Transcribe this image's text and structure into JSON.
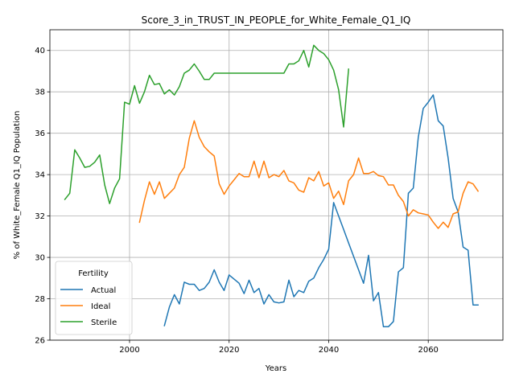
{
  "chart_data": {
    "type": "line",
    "title": "Score_3_in_TRUST_IN_PEOPLE_for_White_Female_Q1_IQ",
    "xlabel": "Years",
    "ylabel": "% of White_Female Q1_IQ Population",
    "xlim": [
      1984,
      2075
    ],
    "ylim": [
      26,
      41
    ],
    "xticks": [
      2000,
      2020,
      2040,
      2060
    ],
    "yticks": [
      26,
      28,
      30,
      32,
      34,
      36,
      38,
      40
    ],
    "grid": true,
    "legend": {
      "title": "Fertility",
      "position": "lower-left"
    },
    "series": [
      {
        "name": "Actual",
        "color": "#1f77b4",
        "x": [
          2007,
          2008,
          2009,
          2010,
          2011,
          2012,
          2013,
          2014,
          2015,
          2016,
          2017,
          2018,
          2019,
          2020,
          2021,
          2022,
          2023,
          2024,
          2025,
          2026,
          2027,
          2028,
          2029,
          2030,
          2031,
          2032,
          2033,
          2034,
          2035,
          2036,
          2037,
          2038,
          2039,
          2040,
          2041,
          2042,
          2043,
          2044,
          2045,
          2046,
          2047,
          2048,
          2049,
          2050,
          2051,
          2052,
          2053,
          2054,
          2055,
          2056,
          2057,
          2058,
          2059,
          2060,
          2061,
          2062,
          2063,
          2064,
          2065,
          2066,
          2067,
          2068,
          2069,
          2070
        ],
        "y": [
          26.7,
          27.6,
          28.2,
          27.75,
          28.8,
          28.7,
          28.7,
          28.4,
          28.5,
          28.8,
          29.4,
          28.8,
          28.4,
          29.15,
          28.95,
          28.75,
          28.25,
          28.9,
          28.3,
          28.5,
          27.75,
          28.2,
          27.85,
          27.8,
          27.85,
          28.9,
          28.1,
          28.4,
          28.3,
          28.85,
          29.0,
          29.5,
          29.9,
          30.4,
          32.65,
          32.0,
          31.35,
          30.7,
          30.05,
          29.4,
          28.75,
          30.1,
          27.9,
          28.3,
          26.65,
          26.65,
          26.9,
          29.3,
          29.5,
          33.1,
          33.35,
          35.8,
          37.2,
          37.5,
          37.85,
          36.6,
          36.35,
          34.8,
          32.85,
          32.2,
          30.5,
          30.35,
          27.7,
          27.7
        ]
      },
      {
        "name": "Ideal",
        "color": "#ff7f0e",
        "x": [
          2002,
          2003,
          2004,
          2005,
          2006,
          2007,
          2008,
          2009,
          2010,
          2011,
          2012,
          2013,
          2014,
          2015,
          2016,
          2017,
          2018,
          2019,
          2020,
          2021,
          2022,
          2023,
          2024,
          2025,
          2026,
          2027,
          2028,
          2029,
          2030,
          2031,
          2032,
          2033,
          2034,
          2035,
          2036,
          2037,
          2038,
          2039,
          2040,
          2041,
          2042,
          2043,
          2044,
          2045,
          2046,
          2047,
          2048,
          2049,
          2050,
          2051,
          2052,
          2053,
          2054,
          2055,
          2056,
          2057,
          2058,
          2059,
          2060,
          2061,
          2062,
          2063,
          2064,
          2065,
          2066,
          2067,
          2068,
          2069,
          2070
        ],
        "y": [
          31.7,
          32.75,
          33.65,
          33.05,
          33.65,
          32.85,
          33.1,
          33.35,
          34.0,
          34.35,
          35.75,
          36.6,
          35.8,
          35.35,
          35.1,
          34.9,
          33.55,
          33.05,
          33.45,
          33.75,
          34.05,
          33.9,
          33.9,
          34.65,
          33.85,
          34.65,
          33.85,
          34.0,
          33.9,
          34.2,
          33.7,
          33.6,
          33.25,
          33.15,
          33.85,
          33.7,
          34.15,
          33.45,
          33.6,
          32.85,
          33.2,
          32.55,
          33.7,
          34.0,
          34.8,
          34.05,
          34.05,
          34.15,
          33.95,
          33.9,
          33.5,
          33.5,
          33.0,
          32.7,
          32.0,
          32.3,
          32.15,
          32.1,
          32.05,
          31.7,
          31.4,
          31.7,
          31.45,
          32.1,
          32.2,
          33.1,
          33.65,
          33.55,
          33.2
        ]
      },
      {
        "name": "Sterile",
        "color": "#2ca02c",
        "x": [
          1987,
          1988,
          1989,
          1990,
          1991,
          1992,
          1993,
          1994,
          1995,
          1996,
          1997,
          1998,
          1999,
          2000,
          2001,
          2002,
          2003,
          2004,
          2005,
          2006,
          2007,
          2008,
          2009,
          2010,
          2011,
          2012,
          2013,
          2014,
          2015,
          2016,
          2017,
          2018,
          2019,
          2020,
          2021,
          2022,
          2023,
          2024,
          2025,
          2026,
          2027,
          2028,
          2029,
          2030,
          2031,
          2032,
          2033,
          2034,
          2035,
          2036,
          2037,
          2038,
          2039,
          2040,
          2041,
          2042,
          2043,
          2044
        ],
        "y": [
          32.8,
          33.1,
          35.2,
          34.8,
          34.35,
          34.4,
          34.6,
          34.95,
          33.5,
          32.6,
          33.35,
          33.8,
          37.5,
          37.4,
          38.3,
          37.45,
          38.0,
          38.8,
          38.35,
          38.4,
          37.9,
          38.1,
          37.85,
          38.25,
          38.9,
          39.05,
          39.35,
          39.0,
          38.6,
          38.6,
          38.9,
          38.9,
          38.9,
          38.9,
          38.9,
          38.9,
          38.9,
          38.9,
          38.9,
          38.9,
          38.9,
          38.9,
          38.9,
          38.9,
          38.9,
          39.35,
          39.35,
          39.5,
          40.0,
          39.2,
          40.25,
          40.0,
          39.85,
          39.55,
          39.05,
          38.1,
          36.3,
          39.1
        ]
      }
    ]
  }
}
